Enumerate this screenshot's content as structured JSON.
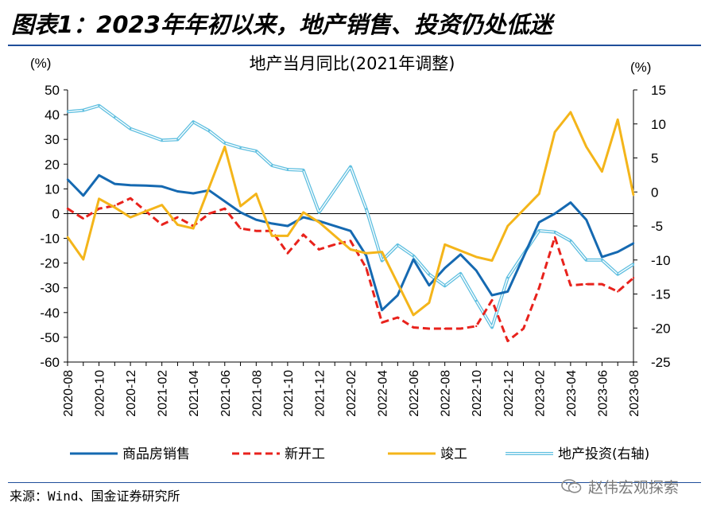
{
  "page": {
    "title": "图表1：2023年年初以来，地产销售、投资仍处低迷",
    "source": "来源：Wind、国金证券研究所",
    "watermark": "赵伟宏观探索"
  },
  "chart_data": {
    "type": "line",
    "title": "地产当月同比(2021年调整)",
    "y_left_unit": "(%)",
    "y_right_unit": "(%)",
    "y_left_range": [
      -60,
      50
    ],
    "y_right_range": [
      -25,
      15
    ],
    "y_left_ticks": [
      50,
      40,
      30,
      20,
      10,
      0,
      -10,
      -20,
      -30,
      -40,
      -50,
      -60
    ],
    "y_right_ticks": [
      15,
      10,
      5,
      0,
      -5,
      -10,
      -15,
      -20,
      -25
    ],
    "x_tick_labels": [
      "2020-08",
      "2020-10",
      "2020-12",
      "2021-02",
      "2021-04",
      "2021-06",
      "2021-08",
      "2021-10",
      "2021-12",
      "2022-02",
      "2022-04",
      "2022-06",
      "2022-08",
      "2022-10",
      "2022-12",
      "2023-02",
      "2023-04",
      "2023-06",
      "2023-08"
    ],
    "x": [
      "2020-08",
      "2020-09",
      "2020-10",
      "2020-11",
      "2020-12",
      "2021-01",
      "2021-02",
      "2021-03",
      "2021-04",
      "2021-05",
      "2021-06",
      "2021-07",
      "2021-08",
      "2021-09",
      "2021-10",
      "2021-11",
      "2021-12",
      "2022-01",
      "2022-02",
      "2022-03",
      "2022-04",
      "2022-05",
      "2022-06",
      "2022-07",
      "2022-08",
      "2022-09",
      "2022-10",
      "2022-11",
      "2022-12",
      "2023-01",
      "2023-02",
      "2023-03",
      "2023-04",
      "2023-05",
      "2023-06",
      "2023-07",
      "2023-08"
    ],
    "grid": false,
    "legend_position": "bottom",
    "series": [
      {
        "name": "商品房销售",
        "axis": "left",
        "color": "#1569b1",
        "style": "solid",
        "values": [
          13.8,
          7.3,
          15.5,
          12.0,
          11.5,
          11.3,
          11.0,
          9.0,
          8.2,
          9.4,
          null,
          0.5,
          -2.5,
          -4.0,
          -5.0,
          -1.5,
          -3.0,
          null,
          -7.0,
          -17.0,
          -39.0,
          -33.0,
          -18.5,
          -29.0,
          -22.0,
          -16.5,
          -23.0,
          -33.0,
          -31.5,
          null,
          -3.5,
          0.0,
          4.5,
          -2.5,
          -17.5,
          -15.5,
          -12.0
        ]
      },
      {
        "name": "新开工",
        "axis": "left",
        "color": "#e8221c",
        "style": "dashed",
        "values": [
          2.0,
          -2.0,
          2.0,
          3.2,
          6.2,
          null,
          -4.5,
          -1.5,
          -5.0,
          0.0,
          2.0,
          -6.0,
          -7.0,
          -7.0,
          -16.0,
          -8.5,
          -14.5,
          -12.5,
          -11.0,
          -22.0,
          -44.0,
          -42.0,
          -46.0,
          -46.5,
          -46.5,
          -46.5,
          -45.5,
          -35.0,
          -51.5,
          -46.5,
          -30.0,
          -9.5,
          -29.0,
          -28.5,
          -28.5,
          -31.5,
          -26.0
        ]
      },
      {
        "name": "竣工",
        "axis": "left",
        "color": "#f4b51a",
        "style": "solid",
        "values": [
          -9.5,
          -18.5,
          6.0,
          2.5,
          -1.5,
          null,
          3.5,
          -4.5,
          -6.0,
          null,
          27.0,
          3.0,
          8.0,
          -9.0,
          -9.0,
          0.5,
          -3.5,
          null,
          -14.5,
          -16.0,
          -15.5,
          null,
          -41.0,
          -36.0,
          -12.5,
          null,
          -17.5,
          -19.0,
          -5.0,
          null,
          8.0,
          33.0,
          41.0,
          27.0,
          17.0,
          38.0,
          7.5
        ]
      },
      {
        "name": "地产投资(右轴)",
        "axis": "right",
        "color": "#5fbfe0",
        "style": "double",
        "values": [
          11.8,
          12.0,
          12.7,
          11.0,
          9.3,
          null,
          7.6,
          7.7,
          10.3,
          9.0,
          7.2,
          6.5,
          6.0,
          3.9,
          3.3,
          3.2,
          -3.0,
          null,
          3.7,
          -2.5,
          -10.1,
          -7.8,
          -9.4,
          -12.1,
          -13.8,
          -12.0,
          -16.0,
          -19.9,
          -12.6,
          null,
          -5.7,
          -5.9,
          -7.2,
          -10.0,
          -10.0,
          -12.1,
          -10.6
        ]
      }
    ]
  }
}
